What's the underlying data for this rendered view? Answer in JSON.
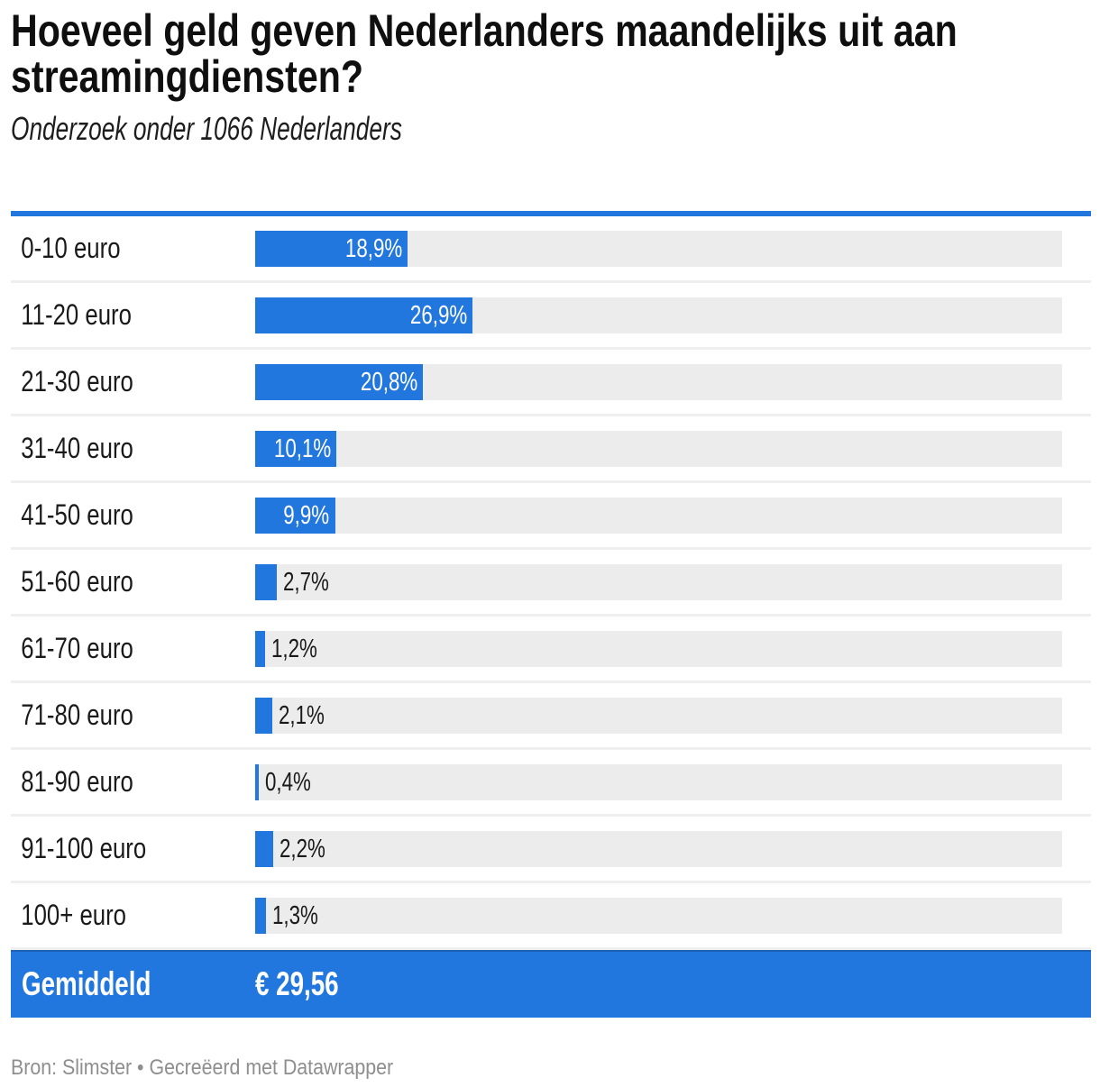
{
  "title": "Hoeveel geld geven Nederlanders maandelijks uit aan streamingdiensten?",
  "subtitle": "Onderzoek onder 1066 Nederlanders",
  "footer": "Bron: Slimster • Gecreëerd met Datawrapper",
  "colors": {
    "bar": "#2277df",
    "track": "#ececec",
    "separator": "#efefef",
    "top_rule": "#2277df"
  },
  "chart_data": {
    "type": "bar",
    "title": "Hoeveel geld geven Nederlanders maandelijks uit aan streamingdiensten?",
    "subtitle": "Onderzoek onder 1066 Nederlanders",
    "categories": [
      "0-10 euro",
      "11-20 euro",
      "21-30 euro",
      "31-40 euro",
      "41-50 euro",
      "51-60 euro",
      "61-70 euro",
      "71-80 euro",
      "81-90 euro",
      "91-100 euro",
      "100+ euro"
    ],
    "values": [
      18.9,
      26.9,
      20.8,
      10.1,
      9.9,
      2.7,
      1.2,
      2.1,
      0.4,
      2.2,
      1.3
    ],
    "value_labels": [
      "18,9%",
      "26,9%",
      "20,8%",
      "10,1%",
      "9,9%",
      "2,7%",
      "1,2%",
      "2,1%",
      "0,4%",
      "2,2%",
      "1,3%"
    ],
    "xlim": [
      0,
      100
    ],
    "grid": false,
    "legend": "none",
    "summary": {
      "label": "Gemiddeld",
      "value": "€ 29,56"
    }
  }
}
